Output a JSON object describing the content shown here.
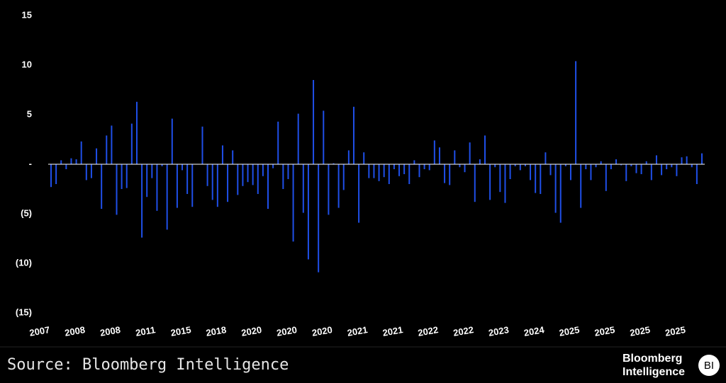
{
  "chart_data": {
    "type": "bar",
    "color": "#1f4fe8",
    "ylim": [
      -15,
      15
    ],
    "yticks": [
      15,
      10,
      5,
      {
        "value": 0,
        "label": "-"
      },
      {
        "value": -5,
        "label": "(5)"
      },
      {
        "value": -10,
        "label": "(10)"
      },
      {
        "value": -15,
        "label": "(15)"
      }
    ],
    "categories": [
      "2007",
      null,
      null,
      null,
      null,
      null,
      null,
      "2008",
      null,
      null,
      null,
      null,
      null,
      null,
      "2008",
      null,
      null,
      null,
      null,
      null,
      null,
      "2011",
      null,
      null,
      null,
      null,
      null,
      null,
      "2015",
      null,
      null,
      null,
      null,
      null,
      null,
      "2018",
      null,
      null,
      null,
      null,
      null,
      null,
      "2020",
      null,
      null,
      null,
      null,
      null,
      null,
      "2020",
      null,
      null,
      null,
      null,
      null,
      null,
      "2020",
      null,
      null,
      null,
      null,
      null,
      null,
      "2021",
      null,
      null,
      null,
      null,
      null,
      null,
      "2021",
      null,
      null,
      null,
      null,
      null,
      null,
      "2022",
      null,
      null,
      null,
      null,
      null,
      null,
      "2022",
      null,
      null,
      null,
      null,
      null,
      null,
      "2023",
      null,
      null,
      null,
      null,
      null,
      null,
      "2024",
      null,
      null,
      null,
      null,
      null,
      null,
      "2025",
      null,
      null,
      null,
      null,
      null,
      null,
      "2025",
      null,
      null,
      null,
      null,
      null,
      null,
      "2025",
      null,
      null,
      null,
      null,
      null,
      null,
      "2025",
      null,
      null,
      null
    ],
    "values": [
      -2.3,
      -2,
      0.4,
      -0.5,
      0.6,
      0.5,
      2.3,
      -1.6,
      -1.4,
      1.6,
      -4.5,
      2.9,
      3.9,
      -5.1,
      -2.5,
      -2.4,
      4.1,
      6.3,
      -7.4,
      -3.3,
      -1.4,
      -4.7,
      -0.2,
      -6.6,
      4.6,
      -4.4,
      -0.6,
      -3,
      -4.3,
      0,
      3.8,
      -2.2,
      -3.6,
      -4.3,
      1.9,
      -3.8,
      1.4,
      -3.1,
      -2.2,
      -1.8,
      -2.1,
      -3,
      -1.2,
      -4.5,
      -0.4,
      4.3,
      -2.5,
      -1.5,
      -7.8,
      5.1,
      -4.9,
      -9.6,
      8.5,
      -10.9,
      5.4,
      -5.1,
      0.1,
      -4.4,
      -2.6,
      1.4,
      5.8,
      -5.9,
      1.2,
      -1.4,
      -1.4,
      -1.7,
      -1.3,
      -2,
      -0.5,
      -1.2,
      -1,
      -2,
      0.4,
      -1.3,
      -0.5,
      -0.6,
      2.4,
      1.7,
      -1.9,
      -2.1,
      1.4,
      -0.3,
      -0.8,
      2.2,
      -3.8,
      0.5,
      2.9,
      -3.6,
      -0.3,
      -2.8,
      -3.9,
      -1.5,
      -0.2,
      -0.6,
      -0.2,
      -1.6,
      -2.9,
      -3,
      1.2,
      -1.1,
      -4.9,
      -5.9,
      -0.2,
      -1.6,
      10.4,
      -4.4,
      -0.5,
      -1.6,
      -0.3,
      0.3,
      -2.7,
      -0.5,
      0.5,
      -0.1,
      -1.7,
      -0.2,
      -0.9,
      -1,
      0.3,
      -1.6,
      0.9,
      -1.1,
      -0.5,
      -0.3,
      -1.2,
      0.7,
      0.8,
      -0.3,
      -2,
      1.1
    ]
  },
  "footer": {
    "source": "Source: Bloomberg Intelligence",
    "logo_line1": "Bloomberg",
    "logo_line2": "Intelligence",
    "logo_badge": "BI"
  }
}
